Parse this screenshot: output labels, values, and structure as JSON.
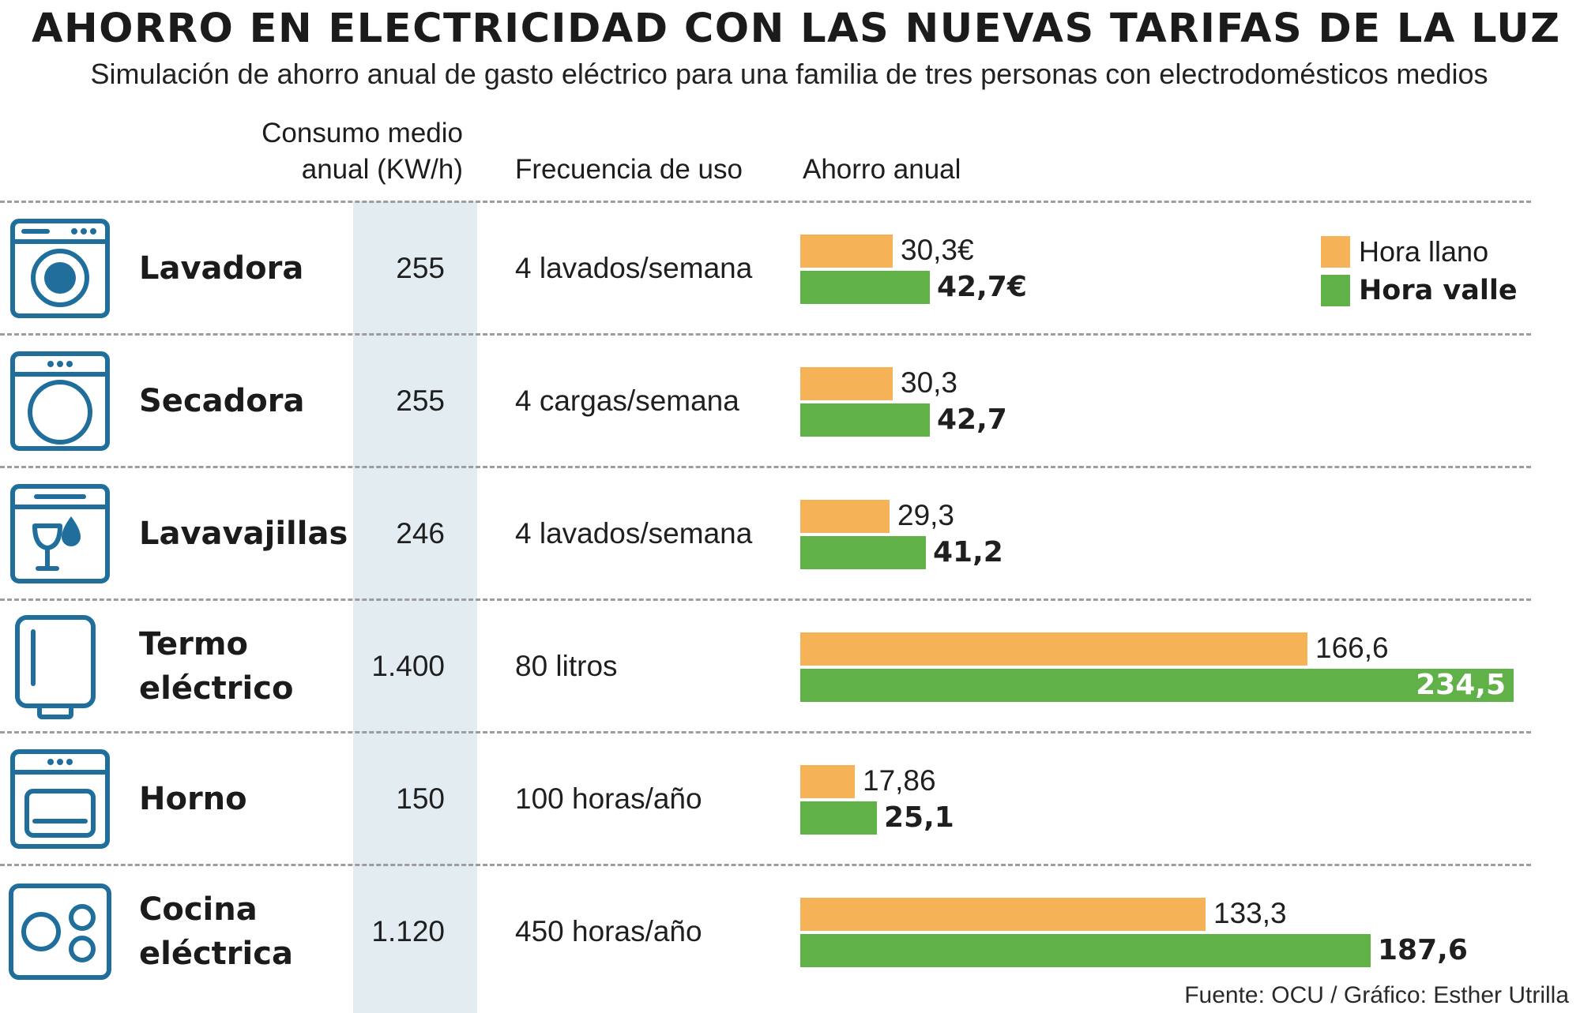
{
  "title": "AHORRO EN ELECTRICIDAD CON LAS NUEVAS TARIFAS DE LA LUZ",
  "subtitle": "Simulación de ahorro anual de gasto eléctrico para una familia de tres personas con electrodomésticos medios",
  "headers": {
    "consumo_line1": "Consumo medio",
    "consumo_line2": "anual (KW/h)",
    "frecuencia": "Frecuencia de uso",
    "ahorro": "Ahorro anual"
  },
  "legend": {
    "llano": "Hora llano",
    "valle": "Hora valle"
  },
  "colors": {
    "llano": "#f6b256",
    "valle": "#61b149",
    "icon": "#1f6e9c",
    "band": "#e3edf1"
  },
  "source": "Fuente: OCU / Gráfico: Esther Utrilla",
  "rows": [
    {
      "icon": "washing-machine-icon",
      "name_lines": [
        "Lavadora"
      ],
      "consumo": "255",
      "frecuencia": "4 lavados/semana",
      "llano_label": "30,3€",
      "valle_label": "42,7€"
    },
    {
      "icon": "dryer-icon",
      "name_lines": [
        "Secadora"
      ],
      "consumo": "255",
      "frecuencia": "4 cargas/semana",
      "llano_label": "30,3",
      "valle_label": "42,7"
    },
    {
      "icon": "dishwasher-icon",
      "name_lines": [
        "Lavavajillas"
      ],
      "consumo": "246",
      "frecuencia": "4 lavados/semana",
      "llano_label": "29,3",
      "valle_label": "41,2"
    },
    {
      "icon": "water-heater-icon",
      "name_lines": [
        "Termo",
        "eléctrico"
      ],
      "consumo": "1.400",
      "frecuencia": "80 litros",
      "llano_label": "166,6",
      "valle_label": "234,5"
    },
    {
      "icon": "oven-icon",
      "name_lines": [
        "Horno"
      ],
      "consumo": "150",
      "frecuencia": "100 horas/año",
      "llano_label": "17,86",
      "valle_label": "25,1"
    },
    {
      "icon": "electric-stove-icon",
      "name_lines": [
        "Cocina",
        "eléctrica"
      ],
      "consumo": "1.120",
      "frecuencia": "450 horas/año",
      "llano_label": "133,3",
      "valle_label": "187,6"
    }
  ],
  "chart_data": {
    "type": "bar",
    "orientation": "horizontal",
    "title": "Ahorro anual",
    "unit": "€",
    "categories": [
      "Lavadora",
      "Secadora",
      "Lavavajillas",
      "Termo eléctrico",
      "Horno",
      "Cocina eléctrica"
    ],
    "series": [
      {
        "name": "Hora llano",
        "values": [
          30.3,
          30.3,
          29.3,
          166.6,
          17.86,
          133.3
        ]
      },
      {
        "name": "Hora valle",
        "values": [
          42.7,
          42.7,
          41.2,
          234.5,
          25.1,
          187.6
        ]
      }
    ],
    "xlim": [
      0,
      234.5
    ],
    "legend_position": "top-right",
    "grid": false
  }
}
